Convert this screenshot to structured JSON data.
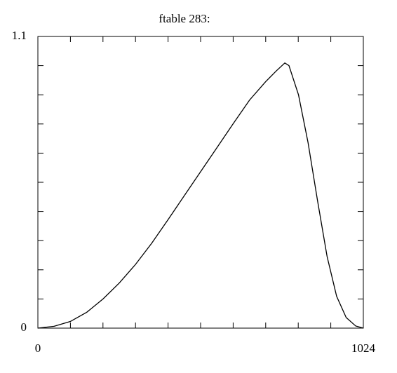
{
  "chart_data": {
    "type": "line",
    "title": "ftable 283:",
    "x": [
      0,
      51,
      102,
      154,
      205,
      256,
      307,
      358,
      410,
      461,
      512,
      563,
      614,
      666,
      717,
      750,
      777,
      790,
      820,
      850,
      880,
      910,
      940,
      970,
      1000,
      1024
    ],
    "values": [
      0,
      0.007,
      0.025,
      0.06,
      0.11,
      0.17,
      0.24,
      0.32,
      0.41,
      0.5,
      0.59,
      0.68,
      0.77,
      0.86,
      0.93,
      0.97,
      1.0,
      0.99,
      0.88,
      0.7,
      0.48,
      0.27,
      0.12,
      0.04,
      0.008,
      0
    ],
    "color": "#000000",
    "xlim": [
      0,
      1024
    ],
    "ylim": [
      0,
      1.1
    ],
    "xticks": [
      0,
      1024
    ],
    "yticks": [
      0,
      1.1
    ],
    "minor_xticks": [
      102.4,
      204.8,
      307.2,
      409.6,
      512,
      614.4,
      716.8,
      819.2,
      921.6
    ],
    "minor_yticks": [
      0.11,
      0.22,
      0.33,
      0.44,
      0.55,
      0.66,
      0.77,
      0.88,
      0.99
    ]
  }
}
